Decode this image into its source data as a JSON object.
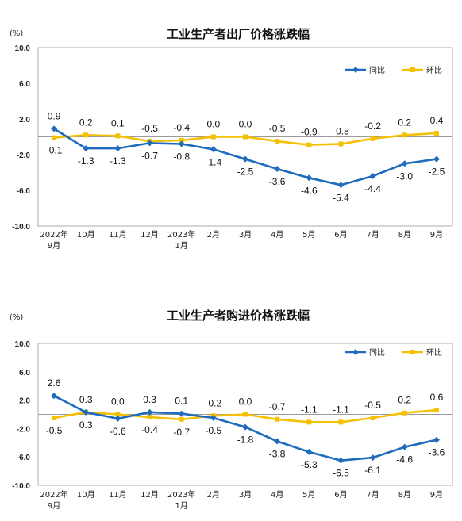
{
  "chart_data": [
    {
      "type": "line",
      "title": "工业生产者出厂价格涨跌幅",
      "unit_label": "(%)",
      "categories": [
        "2022年\n9月",
        "10月",
        "11月",
        "12月",
        "2023年\n1月",
        "2月",
        "3月",
        "4月",
        "5月",
        "6月",
        "7月",
        "8月",
        "9月"
      ],
      "ylim": [
        -10.0,
        10.0
      ],
      "yticks": [
        "10.0",
        "6.0",
        "2.0",
        "-2.0",
        "-6.0",
        "-10.0"
      ],
      "legend_position": "top-right",
      "grid": false,
      "series": [
        {
          "name": "同比",
          "color": "#1f6bbd",
          "marker": "diamond",
          "values": [
            0.9,
            -1.3,
            -1.3,
            -0.7,
            -0.8,
            -1.4,
            -2.5,
            -3.6,
            -4.6,
            -5.4,
            -4.4,
            -3.0,
            -2.5
          ],
          "labels": [
            "0.9",
            "-1.3",
            "-1.3",
            "-0.7",
            "-0.8",
            "-1.4",
            "-2.5",
            "-3.6",
            "-4.6",
            "-5.4",
            "-4.4",
            "-3.0",
            "-2.5"
          ]
        },
        {
          "name": "环比",
          "color": "#f5c000",
          "marker": "square",
          "values": [
            -0.1,
            0.2,
            0.1,
            -0.5,
            -0.4,
            0.0,
            0.0,
            -0.5,
            -0.9,
            -0.8,
            -0.2,
            0.2,
            0.4
          ],
          "labels": [
            "-0.1",
            "0.2",
            "0.1",
            "-0.5",
            "-0.4",
            "0.0",
            "0.0",
            "-0.5",
            "-0.9",
            "-0.8",
            "-0.2",
            "0.2",
            "0.4"
          ]
        }
      ]
    },
    {
      "type": "line",
      "title": "工业生产者购进价格涨跌幅",
      "unit_label": "(%)",
      "categories": [
        "2022年\n9月",
        "10月",
        "11月",
        "12月",
        "2023年\n1月",
        "2月",
        "3月",
        "4月",
        "5月",
        "6月",
        "7月",
        "8月",
        "9月"
      ],
      "ylim": [
        -10.0,
        10.0
      ],
      "yticks": [
        "10.0",
        "6.0",
        "2.0",
        "-2.0",
        "-6.0",
        "-10.0"
      ],
      "legend_position": "top-right",
      "grid": false,
      "series": [
        {
          "name": "同比",
          "color": "#1f6bbd",
          "marker": "diamond",
          "values": [
            2.6,
            0.3,
            -0.6,
            0.3,
            0.1,
            -0.5,
            -1.8,
            -3.8,
            -5.3,
            -6.5,
            -6.1,
            -4.6,
            -3.6
          ],
          "labels": [
            "2.6",
            "0.3",
            "-0.6",
            "0.3",
            "0.1",
            "-0.5",
            "-1.8",
            "-3.8",
            "-5.3",
            "-6.5",
            "-6.1",
            "-4.6",
            "-3.6"
          ]
        },
        {
          "name": "环比",
          "color": "#f5c000",
          "marker": "square",
          "values": [
            -0.5,
            0.3,
            0.0,
            -0.4,
            -0.7,
            -0.2,
            0.0,
            -0.7,
            -1.1,
            -1.1,
            -0.5,
            0.2,
            0.6
          ],
          "labels": [
            "-0.5",
            "0.3",
            "0.0",
            "-0.4",
            "-0.7",
            "-0.2",
            "0.0",
            "-0.7",
            "-1.1",
            "-1.1",
            "-0.5",
            "0.2",
            "0.6"
          ]
        }
      ]
    }
  ]
}
